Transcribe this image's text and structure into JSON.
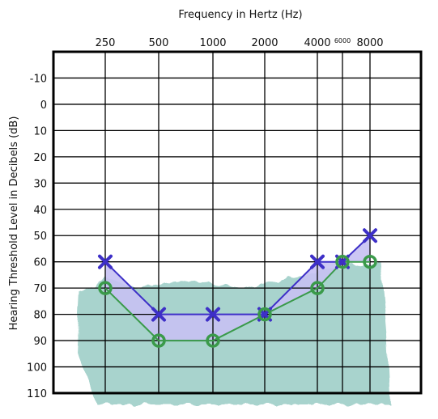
{
  "chart_data": {
    "type": "line",
    "title": "",
    "xlabel": "Frequency in Hertz (Hz)",
    "ylabel": "Hearing Threshold Level in Decibels (dB)",
    "x_ticks": [
      "250",
      "500",
      "1000",
      "2000",
      "4000",
      "6000",
      "8000"
    ],
    "y_ticks": [
      "-10",
      "0",
      "10",
      "20",
      "30",
      "40",
      "50",
      "60",
      "70",
      "80",
      "90",
      "100",
      "110"
    ],
    "ylim": [
      -20,
      110
    ],
    "y_inverted": true,
    "grid": true,
    "series": [
      {
        "marker": "x",
        "color": "#3d2fc7",
        "fill_color": "#c6c1f3",
        "x": [
          "250",
          "500",
          "1000",
          "2000",
          "4000",
          "6000",
          "8000"
        ],
        "values": [
          60,
          80,
          80,
          80,
          60,
          60,
          50
        ]
      },
      {
        "marker": "o",
        "color": "#3a9a4a",
        "x": [
          "250",
          "500",
          "1000",
          "2000",
          "4000",
          "6000",
          "8000"
        ],
        "values": [
          70,
          90,
          90,
          80,
          70,
          60,
          60
        ]
      }
    ],
    "background_band_color": "#9fcfc8"
  }
}
